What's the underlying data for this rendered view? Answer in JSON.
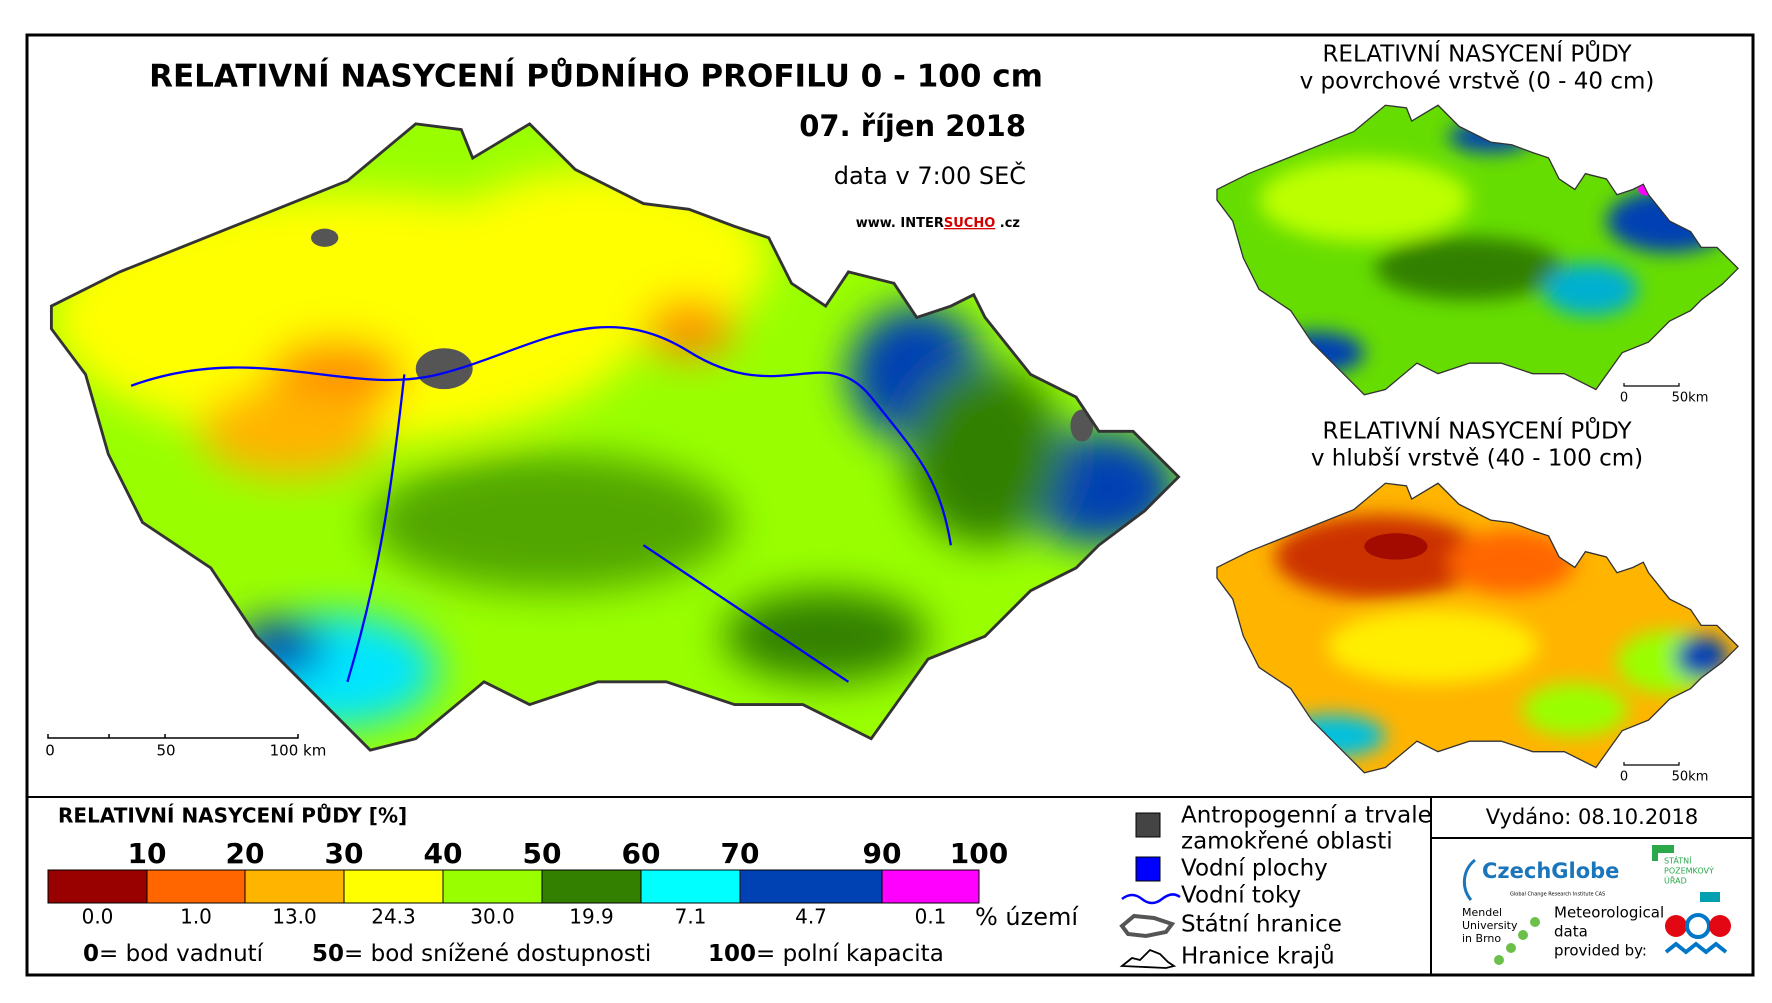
{
  "main_map": {
    "title": "RELATIVNÍ NASYCENÍ PŮDNÍHO PROFILU 0 - 100 cm",
    "date": "07. říjen 2018",
    "data_time": "data v 7:00 SEČ",
    "website": {
      "prefix": "www. INTER",
      "highlight": "SUCHO",
      "suffix": " .cz"
    },
    "scale_labels": [
      "0",
      "50",
      "100 km"
    ]
  },
  "inset_maps": [
    {
      "title_line1": "RELATIVNÍ NASYCENÍ PŮDY",
      "title_line2": "v povrchové vrstvě (0 - 40 cm)",
      "scale_labels": [
        "0",
        "50km"
      ]
    },
    {
      "title_line1": "RELATIVNÍ NASYCENÍ PŮDY",
      "title_line2": "v hlubší vrstvě (40 - 100 cm)",
      "scale_labels": [
        "0",
        "50km"
      ]
    }
  ],
  "legend": {
    "title": "RELATIVNÍ NASYCENÍ PŮDY [%]",
    "thresholds": [
      10,
      20,
      30,
      40,
      50,
      60,
      70,
      90,
      100
    ],
    "classes": [
      {
        "color": "#990000",
        "share": "0.0"
      },
      {
        "color": "#ff6600",
        "share": "1.0"
      },
      {
        "color": "#ffb400",
        "share": "13.0"
      },
      {
        "color": "#ffff00",
        "share": "24.3"
      },
      {
        "color": "#99ff00",
        "share": "30.0"
      },
      {
        "color": "#338000",
        "share": "19.9"
      },
      {
        "color": "#00ffff",
        "share": "7.1"
      },
      {
        "color": "#0041b4",
        "share": "4.7"
      },
      {
        "color": "#ff00ff",
        "share": "0.1"
      }
    ],
    "share_unit": "% území",
    "notes": [
      {
        "key": "0",
        "text": "= bod vadnutí"
      },
      {
        "key": "50",
        "text": "= bod snížené dostupnosti"
      },
      {
        "key": "100",
        "text": "= polní kapacita"
      }
    ]
  },
  "symbols": [
    {
      "line1": "Antropogenní a trvale",
      "line2": "zamokřené oblasti"
    },
    {
      "line1": "Vodní plochy"
    },
    {
      "line1": "Vodní toky"
    },
    {
      "line1": "Státní hranice"
    },
    {
      "line1": "Hranice krajů"
    }
  ],
  "issued": "Vydáno: 08.10.2018",
  "logos": {
    "czechglobe": "CzechGlobe",
    "czechglobe_sub": "Global Change Research Institute CAS",
    "spu": [
      "STÁTNÍ",
      "POZEMKOVÝ",
      "ÚŘAD"
    ],
    "mendel": [
      "Mendel",
      "University",
      "in Brno"
    ],
    "meteo": [
      "Meteorological",
      "data",
      "provided by:"
    ]
  }
}
